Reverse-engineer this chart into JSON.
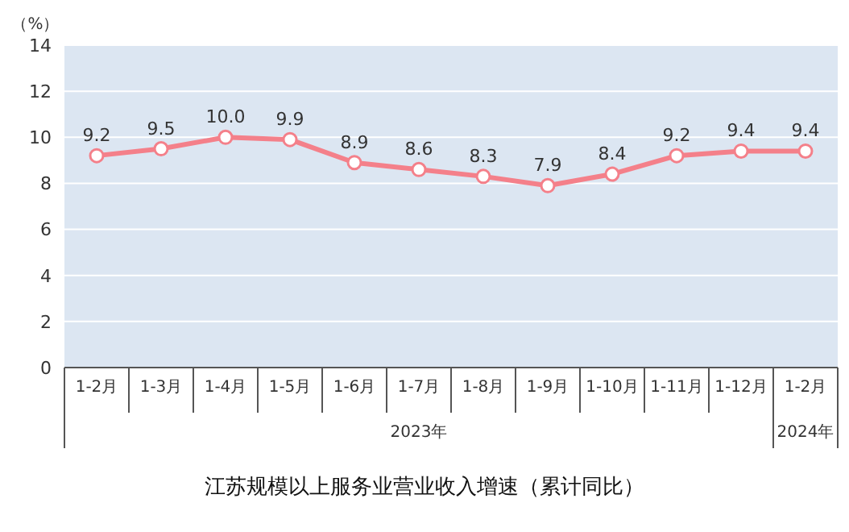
{
  "chart_data": {
    "type": "line",
    "title": "江苏规模以上服务业营业收入增速（累计同比）",
    "ylabel": "（%）",
    "categories": [
      "1-2月",
      "1-3月",
      "1-4月",
      "1-5月",
      "1-6月",
      "1-7月",
      "1-8月",
      "1-9月",
      "1-10月",
      "1-11月",
      "1-12月",
      "1-2月"
    ],
    "series": [
      {
        "color": "#f4808a",
        "values": [
          9.2,
          9.5,
          10.0,
          9.9,
          8.9,
          8.6,
          8.3,
          7.9,
          8.4,
          9.2,
          9.4,
          9.4
        ]
      }
    ],
    "value_labels": [
      "9.2",
      "9.5",
      "10.0",
      "9.9",
      "8.9",
      "8.6",
      "8.3",
      "7.9",
      "8.4",
      "9.2",
      "9.4",
      "9.4"
    ],
    "ylim": [
      0,
      14
    ],
    "yticks": [
      0,
      2,
      4,
      6,
      8,
      10,
      12,
      14
    ],
    "grid": "y",
    "marker": "circle",
    "line_style": "solid",
    "annotations": [
      "2023年",
      "2024年"
    ]
  }
}
